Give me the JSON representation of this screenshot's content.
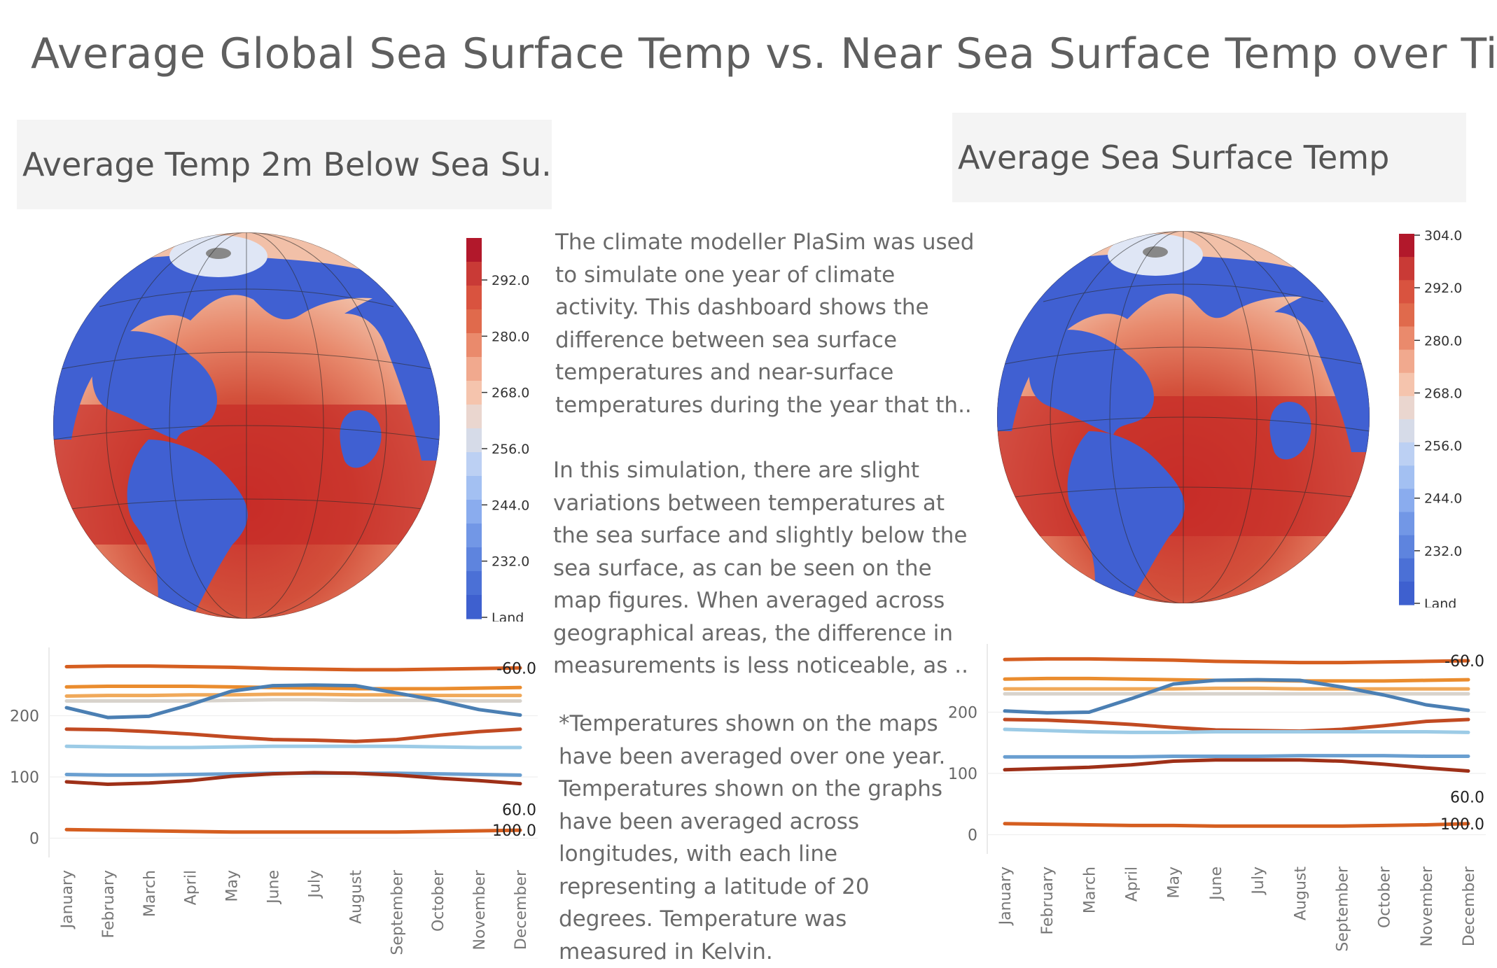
{
  "title": "Average Global Sea Surface Temp vs. Near Sea Surface Temp over Time",
  "panels": {
    "left": {
      "title": "Average Temp 2m Below Sea Su.."
    },
    "right": {
      "title": "Average Sea Surface Temp"
    }
  },
  "colorbars": {
    "left": {
      "ticks": [
        "292.0",
        "280.0",
        "268.0",
        "256.0",
        "244.0",
        "232.0",
        "Land"
      ]
    },
    "right": {
      "ticks": [
        "304.0",
        "292.0",
        "280.0",
        "268.0",
        "256.0",
        "244.0",
        "232.0",
        "Land"
      ]
    }
  },
  "description": {
    "p1": "The climate modeller PlaSim was used\nto simulate one year of climate\nactivity. This dashboard shows the\ndifference between sea surface\ntemperatures and near-surface\ntemperatures during the year that th..",
    "p2": "In this simulation, there are slight\nvariations between temperatures at\nthe sea surface and slightly below the\nsea surface, as can be seen on the\nmap figures. When averaged across\ngeographical areas, the difference in\nmeasurements is less noticeable, as ..",
    "p3": "*Temperatures shown on the maps\nhave been averaged over one year.\nTemperatures shown on the graphs\nhave been averaged across\nlongitudes, with each line\nrepresenting a latitude of 20\ndegrees. Temperature was\nmeasured in Kelvin."
  },
  "colors": {
    "ocean_warm": "#c9302c",
    "land": "#3f5fd0",
    "series": [
      "#d55e20",
      "#ea8c2e",
      "#f0a95a",
      "#d8d3cc",
      "#4b7fb3",
      "#c14a22",
      "#9ccbe6",
      "#6a9fd0",
      "#9e3018"
    ]
  },
  "chart_data": [
    {
      "type": "line",
      "categories": [
        "January",
        "February",
        "March",
        "April",
        "May",
        "June",
        "July",
        "August",
        "September",
        "October",
        "November",
        "December"
      ],
      "ylim": [
        -20,
        300
      ],
      "yticks": [
        "0",
        "100",
        "200"
      ],
      "line_labels": [
        "-60.0",
        "60.0",
        "100.0"
      ],
      "series": [
        {
          "values": [
            280,
            281,
            281,
            280,
            279,
            277,
            276,
            275,
            275,
            276,
            277,
            278
          ]
        },
        {
          "values": [
            247,
            248,
            248,
            248,
            247,
            246,
            245,
            244,
            244,
            244,
            245,
            246
          ]
        },
        {
          "values": [
            232,
            233,
            233,
            234,
            234,
            235,
            235,
            234,
            234,
            233,
            233,
            233
          ]
        },
        {
          "values": [
            224,
            224,
            224,
            224,
            225,
            226,
            226,
            225,
            225,
            225,
            224,
            224
          ]
        },
        {
          "values": [
            213,
            197,
            199,
            218,
            240,
            249,
            250,
            249,
            237,
            225,
            210,
            201
          ]
        },
        {
          "values": [
            178,
            177,
            174,
            170,
            165,
            161,
            160,
            158,
            161,
            168,
            174,
            178
          ]
        },
        {
          "values": [
            150,
            149,
            148,
            148,
            149,
            150,
            150,
            150,
            150,
            149,
            148,
            148
          ]
        },
        {
          "values": [
            104,
            103,
            103,
            104,
            105,
            106,
            106,
            106,
            106,
            105,
            104,
            103
          ]
        },
        {
          "values": [
            92,
            88,
            90,
            94,
            101,
            105,
            107,
            106,
            103,
            98,
            94,
            89
          ]
        },
        {
          "values": [
            14,
            13,
            12,
            11,
            10,
            10,
            10,
            10,
            10,
            11,
            12,
            13
          ]
        }
      ]
    },
    {
      "type": "line",
      "categories": [
        "January",
        "February",
        "March",
        "April",
        "May",
        "June",
        "July",
        "August",
        "September",
        "October",
        "November",
        "December"
      ],
      "ylim": [
        -20,
        300
      ],
      "yticks": [
        "0",
        "100",
        "200"
      ],
      "line_labels": [
        "-60.0",
        "60.0",
        "100.0"
      ],
      "series": [
        {
          "values": [
            286,
            287,
            287,
            286,
            285,
            283,
            282,
            281,
            281,
            282,
            283,
            284
          ]
        },
        {
          "values": [
            254,
            255,
            255,
            254,
            253,
            252,
            252,
            251,
            251,
            251,
            252,
            253
          ]
        },
        {
          "values": [
            238,
            238,
            238,
            238,
            238,
            239,
            239,
            238,
            238,
            238,
            238,
            238
          ]
        },
        {
          "values": [
            230,
            230,
            230,
            230,
            230,
            230,
            230,
            230,
            230,
            230,
            230,
            230
          ]
        },
        {
          "values": [
            202,
            199,
            200,
            222,
            246,
            252,
            253,
            252,
            241,
            228,
            212,
            203
          ]
        },
        {
          "values": [
            188,
            187,
            184,
            180,
            175,
            171,
            170,
            169,
            172,
            178,
            185,
            188
          ]
        },
        {
          "values": [
            172,
            170,
            168,
            167,
            167,
            168,
            168,
            168,
            168,
            168,
            168,
            167
          ]
        },
        {
          "values": [
            127,
            127,
            127,
            127,
            128,
            128,
            128,
            129,
            129,
            129,
            128,
            128
          ]
        },
        {
          "values": [
            106,
            108,
            110,
            114,
            120,
            122,
            122,
            122,
            120,
            115,
            109,
            104
          ]
        },
        {
          "values": [
            18,
            17,
            16,
            15,
            15,
            14,
            14,
            14,
            14,
            15,
            16,
            18
          ]
        }
      ]
    }
  ]
}
